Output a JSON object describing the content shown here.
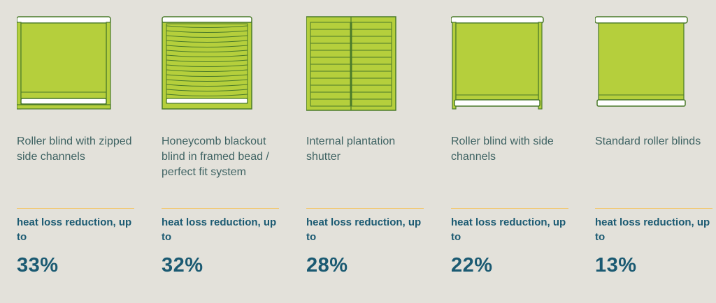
{
  "colors": {
    "background": "#e3e1da",
    "blind_green": "#b5cf3c",
    "outline": "#4a7a2a",
    "text": "#3f6363",
    "accent_text": "#1b5a72",
    "divider": "#f2c66b"
  },
  "items": [
    {
      "name": "Roller blind with zipped side channels",
      "icon": "roller-blind-zipped-side-channels-icon",
      "label": "heat loss reduction, up to",
      "value": "33%"
    },
    {
      "name": "Honeycomb blackout blind in framed bead / perfect fit system",
      "icon": "honeycomb-blind-icon",
      "label": "heat loss reduction, up to",
      "value": "32%"
    },
    {
      "name": "Internal plantation shutter",
      "icon": "plantation-shutter-icon",
      "label": "heat loss reduction, up to",
      "value": "28%"
    },
    {
      "name": "Roller blind with side channels",
      "icon": "roller-blind-side-channels-icon",
      "label": "heat loss reduction, up to",
      "value": "22%"
    },
    {
      "name": "Standard roller blinds",
      "icon": "standard-roller-blind-icon",
      "label": "heat loss reduction, up to",
      "value": "13%"
    }
  ]
}
